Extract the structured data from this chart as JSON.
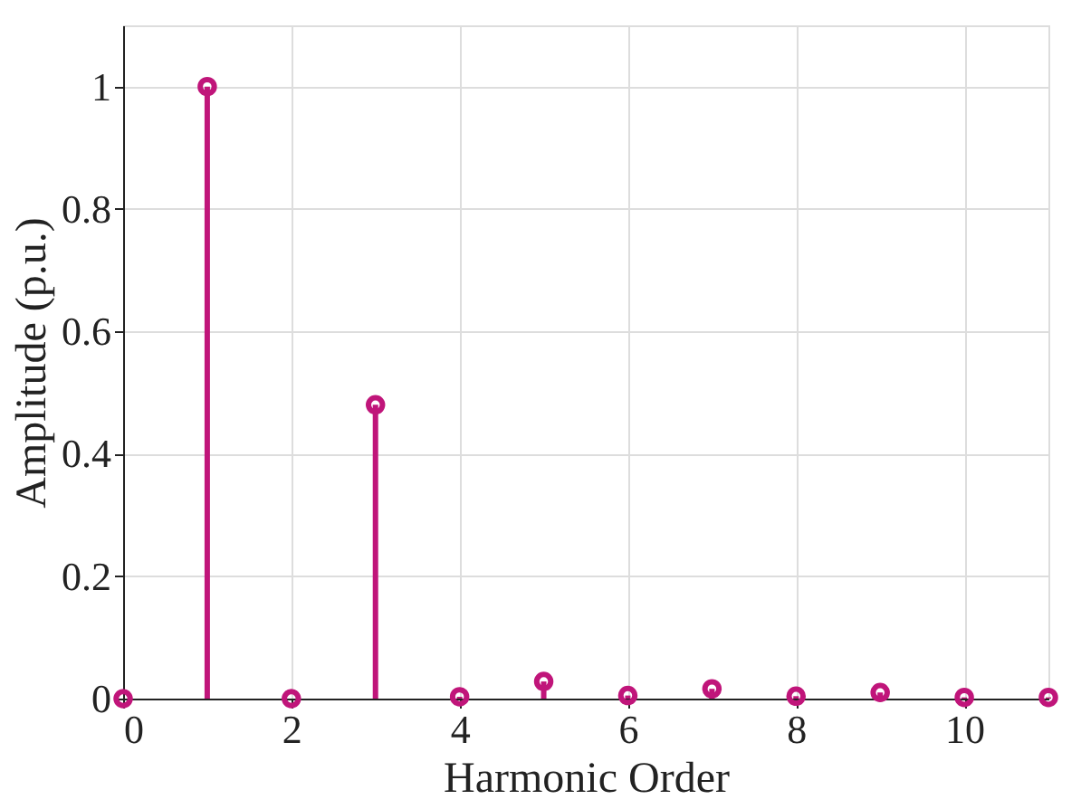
{
  "chart_data": {
    "type": "lollipop",
    "xlabel": "Harmonic Order",
    "ylabel": "Amplitude (p.u.)",
    "x": [
      0,
      1,
      2,
      3,
      4,
      5,
      6,
      7,
      8,
      9,
      10,
      11
    ],
    "values": [
      0,
      1,
      0,
      0.48,
      0.003,
      0.028,
      0.005,
      0.016,
      0.004,
      0.01,
      0.002,
      0.002
    ],
    "color": "#c0157a",
    "marker": "circle",
    "xlim": [
      0,
      11
    ],
    "xticks": [
      0,
      2,
      4,
      6,
      8,
      10
    ],
    "ylim": [
      0,
      1.1
    ],
    "yticks": [
      0,
      0.2,
      0.4,
      0.6,
      0.8,
      1
    ],
    "grid": true
  }
}
